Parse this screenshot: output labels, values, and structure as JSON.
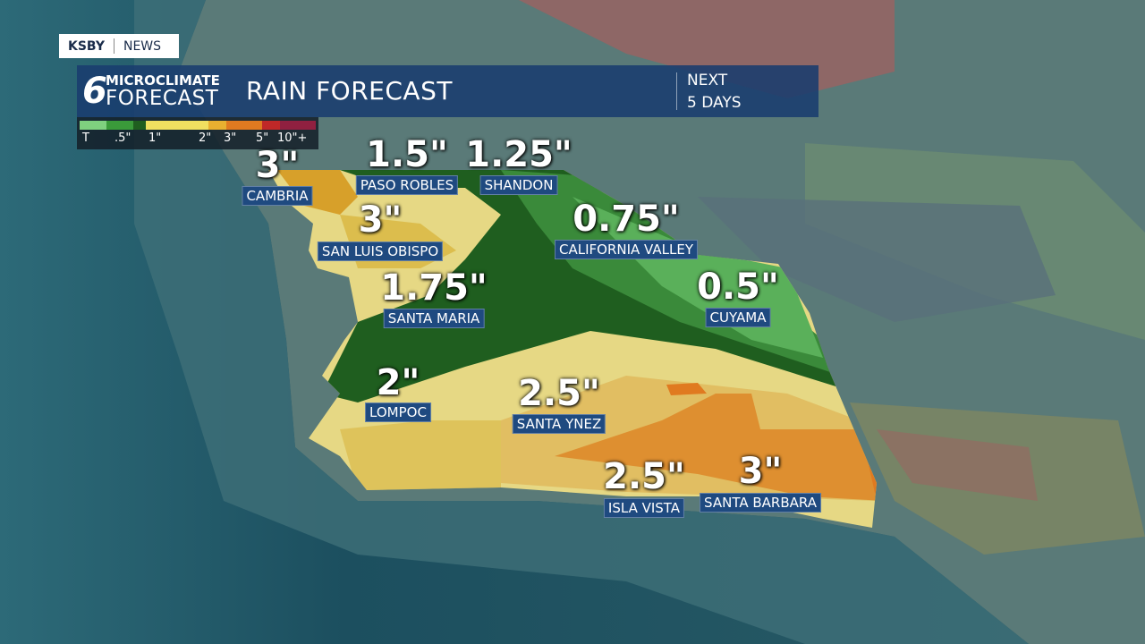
{
  "header": {
    "network": "KSBY",
    "section": "NEWS",
    "logo": "6",
    "brand_top": "MICROCLIMATE",
    "brand_bottom": "FORECAST",
    "title": "RAIN FORECAST",
    "period": [
      "NEXT",
      "5 DAYS"
    ]
  },
  "legend": {
    "labels": [
      "T",
      ".5\"",
      "1\"",
      "2\"",
      "3\"",
      "5\"",
      "10\"+"
    ]
  },
  "locations": [
    {
      "name": "CAMBRIA",
      "amount": "3\""
    },
    {
      "name": "PASO ROBLES",
      "amount": "1.5\""
    },
    {
      "name": "SHANDON",
      "amount": "1.25\""
    },
    {
      "name": "SAN LUIS OBISPO",
      "amount": "3\""
    },
    {
      "name": "CALIFORNIA VALLEY",
      "amount": "0.75\""
    },
    {
      "name": "SANTA MARIA",
      "amount": "1.75\""
    },
    {
      "name": "CUYAMA",
      "amount": "0.5\""
    },
    {
      "name": "LOMPOC",
      "amount": "2\""
    },
    {
      "name": "SANTA YNEZ",
      "amount": "2.5\""
    },
    {
      "name": "ISLA VISTA",
      "amount": "2.5\""
    },
    {
      "name": "SANTA BARBARA",
      "amount": "3\""
    }
  ]
}
